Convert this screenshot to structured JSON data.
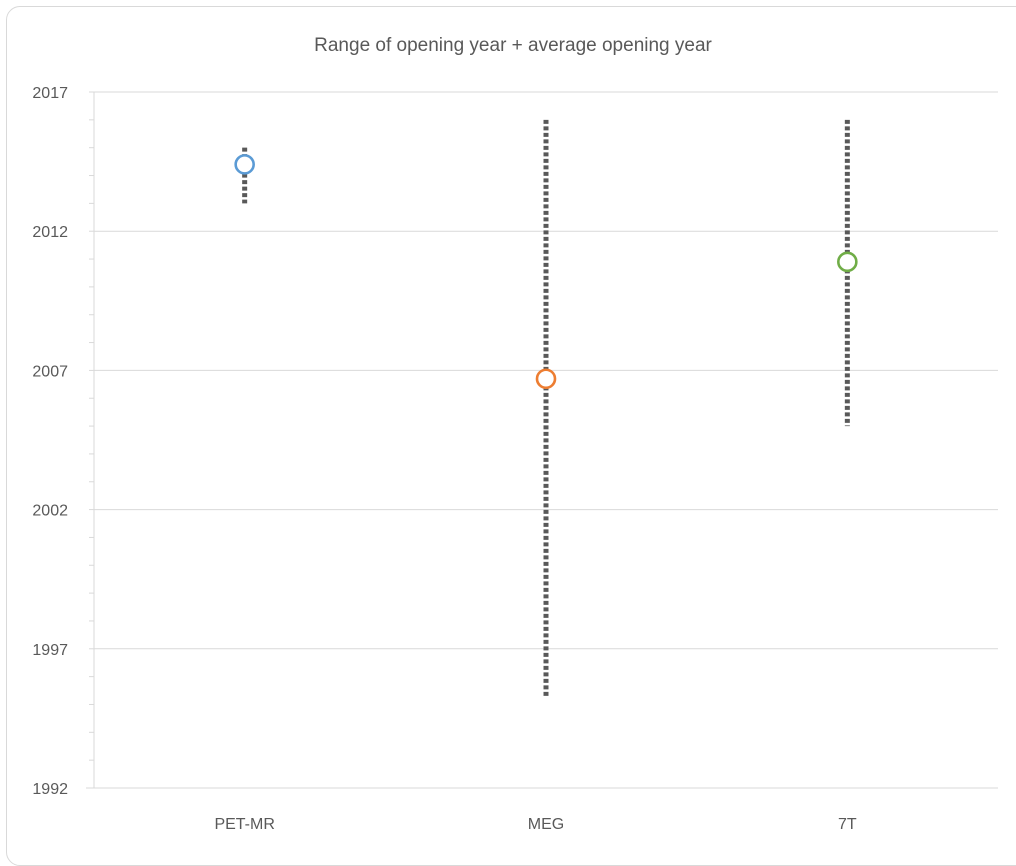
{
  "chart_data": {
    "type": "scatter",
    "title": "Range of opening year + average opening year",
    "xlabel": "",
    "ylabel": "",
    "categories": [
      "PET-MR",
      "MEG",
      "7T"
    ],
    "ylim": [
      1992,
      2017
    ],
    "yticks": [
      1992,
      1997,
      2002,
      2007,
      2012,
      2017
    ],
    "grid": true,
    "points": [
      {
        "category": "PET-MR",
        "average": 2014.4,
        "min": 2013,
        "max": 2015,
        "color": "#5b9bd5"
      },
      {
        "category": "MEG",
        "average": 2006.7,
        "min": 1995.3,
        "max": 2016,
        "color": "#ed7d31"
      },
      {
        "category": "7T",
        "average": 2010.9,
        "min": 2005,
        "max": 2016,
        "color": "#70ad47"
      }
    ]
  }
}
